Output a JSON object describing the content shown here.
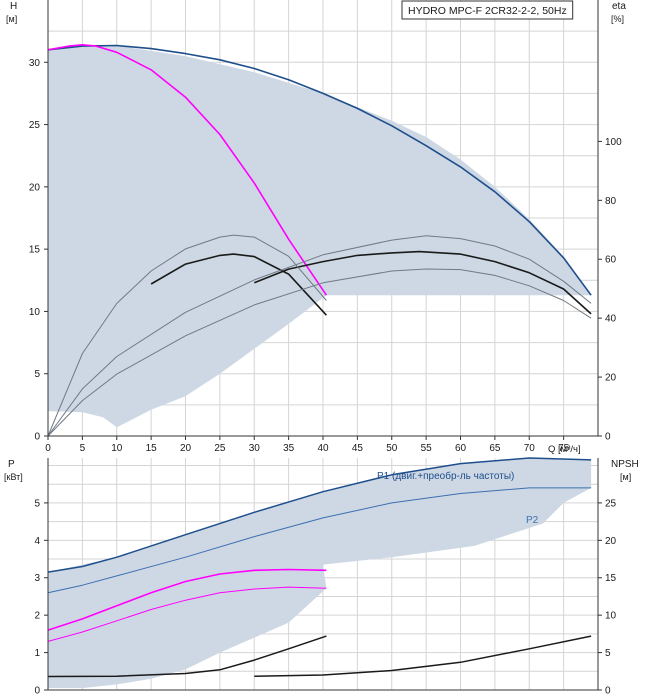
{
  "chart_data": [
    {
      "type": "line",
      "title": "HYDRO MPC-F 2CR32-2-2, 50Hz",
      "ylabel": "H",
      "yunit": "[м]",
      "y2label": "eta",
      "y2unit": "[%]",
      "xlabel": "Q [м³/ч]",
      "xlim": [
        0,
        80
      ],
      "ylim": [
        0,
        35
      ],
      "y2lim": [
        0,
        148
      ],
      "grid": true,
      "xticks": [
        "0",
        "5",
        "10",
        "15",
        "20",
        "25",
        "30",
        "35",
        "40",
        "45",
        "50",
        "55",
        "60",
        "65",
        "70",
        "75"
      ],
      "yticks": [
        "0",
        "5",
        "10",
        "15",
        "20",
        "25",
        "30"
      ],
      "y2ticks": [
        "0",
        "20",
        "40",
        "60",
        "80",
        "100"
      ],
      "colors": {
        "envelope": "#cdd8e4",
        "single_pump_head": "#ff00ff",
        "max_head": "#1f4e8c",
        "head_curve": "#1a1a1a",
        "efficiency": "#707a84"
      },
      "envelope": {
        "upper": [
          [
            0,
            31
          ],
          [
            3,
            31.3
          ],
          [
            7,
            31.4
          ],
          [
            10,
            31.35
          ],
          [
            20,
            30.5
          ],
          [
            30,
            29.2
          ],
          [
            40,
            27.5
          ],
          [
            50,
            25.3
          ],
          [
            55,
            24.0
          ],
          [
            60,
            22.2
          ],
          [
            65,
            20.0
          ],
          [
            70,
            17.4
          ],
          [
            75,
            14.4
          ],
          [
            79,
            11.3
          ]
        ],
        "lower": [
          [
            79,
            11.3
          ],
          [
            40.5,
            11.3
          ],
          [
            35,
            9
          ],
          [
            25,
            5
          ],
          [
            20,
            3.2
          ],
          [
            15,
            2.1
          ],
          [
            10,
            0.7
          ],
          [
            8,
            1.5
          ],
          [
            5,
            1.9
          ],
          [
            0,
            2.0
          ]
        ]
      },
      "series": [
        {
          "role": "max_head",
          "x": [
            0,
            5,
            10,
            15,
            20,
            25,
            30,
            35,
            40,
            45,
            50,
            55,
            60,
            65,
            70,
            75,
            79
          ],
          "y": [
            31,
            31.3,
            31.35,
            31.1,
            30.7,
            30.2,
            29.5,
            28.6,
            27.5,
            26.3,
            24.9,
            23.3,
            21.6,
            19.6,
            17.2,
            14.3,
            11.3
          ]
        },
        {
          "role": "single_pump_head",
          "x": [
            0,
            3,
            5,
            7,
            10,
            15,
            20,
            25,
            30,
            35,
            40.5
          ],
          "y": [
            31,
            31.3,
            31.4,
            31.3,
            30.8,
            29.4,
            27.2,
            24.2,
            20.3,
            15.8,
            11.3
          ]
        },
        {
          "role": "head_curve",
          "x": [
            15,
            20,
            25,
            27,
            30,
            35,
            40.5
          ],
          "y": [
            12.2,
            13.8,
            14.5,
            14.6,
            14.4,
            13.0,
            9.7
          ]
        },
        {
          "role": "head_curve",
          "x": [
            30,
            35,
            40,
            45,
            50,
            54,
            60,
            65,
            70,
            75,
            79
          ],
          "y": [
            12.3,
            13.4,
            14.0,
            14.5,
            14.7,
            14.8,
            14.6,
            14.0,
            13.1,
            11.8,
            9.8
          ]
        },
        {
          "role": "efficiency",
          "x": [
            0,
            5,
            10,
            15,
            20,
            25,
            27,
            30,
            35,
            40.5
          ],
          "y2": [
            0,
            28,
            45,
            56,
            63.5,
            67.5,
            68.2,
            67.5,
            61,
            46
          ]
        },
        {
          "role": "efficiency",
          "x": [
            0,
            5,
            10,
            20,
            30,
            40,
            50,
            55,
            60,
            65,
            70,
            75,
            79
          ],
          "y2": [
            0,
            16,
            27,
            42,
            53,
            61.5,
            66.5,
            68,
            67,
            64.5,
            60,
            52.5,
            45
          ]
        },
        {
          "role": "efficiency",
          "x": [
            0,
            5,
            10,
            20,
            30,
            40,
            50,
            55,
            60,
            65,
            70,
            75,
            79
          ],
          "y2": [
            0,
            12,
            21,
            34,
            44.5,
            52,
            56,
            56.7,
            56.5,
            54.5,
            51,
            46,
            40
          ]
        }
      ]
    },
    {
      "type": "line",
      "ylabel": "P",
      "yunit": "[кВт]",
      "y2label": "NPSH",
      "y2unit": "[м]",
      "xlim": [
        0,
        80
      ],
      "ylim": [
        0,
        6.2
      ],
      "y2lim": [
        0,
        31
      ],
      "grid": true,
      "yticks": [
        "0",
        "1",
        "2",
        "3",
        "4",
        "5"
      ],
      "y2ticks": [
        "0",
        "5",
        "10",
        "15",
        "20",
        "25"
      ],
      "colors": {
        "envelope": "#cdd8e4",
        "p1": "#1f4e8c",
        "p2": "#3d6fb0",
        "single_pump_power": "#ff00ff",
        "npsh": "#1a1a1a"
      },
      "series": [
        {
          "name": "P1 (двиг.+преобр-ль частоты)",
          "role": "p1",
          "x": [
            0,
            5,
            10,
            20,
            30,
            40,
            50,
            60,
            70,
            79
          ],
          "y": [
            3.15,
            3.3,
            3.55,
            4.15,
            4.75,
            5.3,
            5.75,
            6.05,
            6.2,
            6.15
          ]
        },
        {
          "name": "P2",
          "role": "p2",
          "x": [
            0,
            5,
            10,
            20,
            30,
            40,
            50,
            60,
            70,
            79
          ],
          "y": [
            2.6,
            2.8,
            3.05,
            3.55,
            4.1,
            4.6,
            5.0,
            5.25,
            5.4,
            5.4
          ]
        },
        {
          "role": "single_pump_power",
          "x": [
            0,
            5,
            10,
            15,
            20,
            25,
            30,
            35,
            40.5
          ],
          "y": [
            1.6,
            1.9,
            2.25,
            2.6,
            2.9,
            3.1,
            3.2,
            3.22,
            3.2
          ]
        },
        {
          "role": "single_pump_power_p2",
          "x": [
            0,
            5,
            10,
            15,
            20,
            25,
            30,
            35,
            40.5
          ],
          "y": [
            1.3,
            1.55,
            1.85,
            2.15,
            2.4,
            2.6,
            2.7,
            2.75,
            2.72
          ]
        },
        {
          "role": "npsh",
          "x": [
            0,
            10,
            20,
            25,
            30,
            35,
            40.5
          ],
          "y2": [
            1.8,
            1.85,
            2.2,
            2.7,
            4.0,
            5.5,
            7.2
          ]
        },
        {
          "role": "npsh",
          "x": [
            30,
            40,
            50,
            60,
            70,
            79
          ],
          "y2": [
            1.85,
            2.0,
            2.6,
            3.7,
            5.5,
            7.2
          ]
        }
      ],
      "envelope": {
        "upper": [
          [
            0,
            3.15
          ],
          [
            10,
            3.55
          ],
          [
            20,
            4.15
          ],
          [
            30,
            4.75
          ],
          [
            40,
            5.3
          ],
          [
            50,
            5.75
          ],
          [
            60,
            6.05
          ],
          [
            70,
            6.2
          ],
          [
            79,
            6.15
          ]
        ],
        "lower": [
          [
            79,
            5.4
          ],
          [
            75,
            5.0
          ],
          [
            72,
            4.45
          ],
          [
            62,
            3.85
          ],
          [
            50,
            3.55
          ],
          [
            40,
            3.35
          ],
          [
            40.5,
            2.72
          ],
          [
            35,
            1.8
          ],
          [
            25,
            1.0
          ],
          [
            20,
            0.55
          ],
          [
            15,
            0.3
          ],
          [
            10,
            0.15
          ],
          [
            5,
            0.05
          ],
          [
            0,
            0.05
          ]
        ]
      }
    }
  ]
}
